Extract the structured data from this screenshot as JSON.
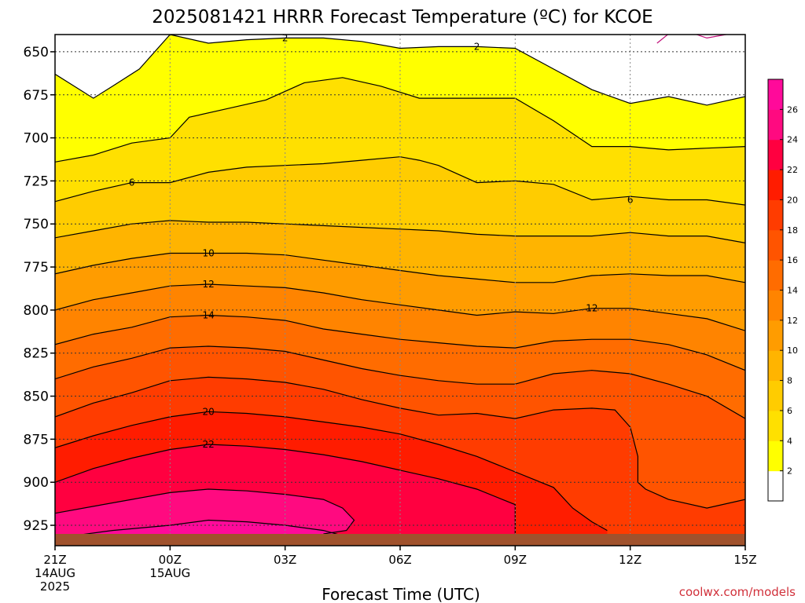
{
  "chart_data": {
    "type": "heatmap",
    "title": "2025081421 HRRR Forecast Temperature (ºC) for KCOE",
    "xlabel": "Forecast Time (UTC)",
    "ylabel": "",
    "y_scale": "pressure",
    "ylim": [
      640,
      935
    ],
    "y_ticks": [
      650,
      675,
      700,
      725,
      750,
      775,
      800,
      825,
      850,
      875,
      900,
      925
    ],
    "x_ticks": [
      {
        "hour": 0,
        "label": "21Z",
        "sub1": "14AUG",
        "sub2": "2025"
      },
      {
        "hour": 3,
        "label": "00Z",
        "sub1": "15AUG",
        "sub2": ""
      },
      {
        "hour": 6,
        "label": "03Z",
        "sub1": "",
        "sub2": ""
      },
      {
        "hour": 9,
        "label": "06Z",
        "sub1": "",
        "sub2": ""
      },
      {
        "hour": 12,
        "label": "09Z",
        "sub1": "",
        "sub2": ""
      },
      {
        "hour": 15,
        "label": "12Z",
        "sub1": "",
        "sub2": ""
      },
      {
        "hour": 18,
        "label": "15Z",
        "sub1": "",
        "sub2": ""
      }
    ],
    "grid": true,
    "colorbar": {
      "placement": "right",
      "levels": [
        2,
        4,
        6,
        8,
        10,
        12,
        14,
        16,
        18,
        20,
        22,
        24,
        26,
        28
      ],
      "labels": [
        "2",
        "4",
        "6",
        "8",
        "10",
        "12",
        "14",
        "16",
        "18",
        "20",
        "22",
        "24",
        "26"
      ],
      "colors": [
        "#ffff00",
        "#ffe000",
        "#ffcc00",
        "#ffb400",
        "#ff9c00",
        "#ff8400",
        "#ff6c00",
        "#ff5400",
        "#ff3c00",
        "#ff1c00",
        "#ff0040",
        "#ff0a80",
        "#ff0a9a"
      ],
      "below_color": "#ffffff"
    },
    "ground_color": "#a0522d",
    "contours": [
      {
        "value": 0,
        "points": [
          [
            15.7,
            645
          ],
          [
            16.2,
            636
          ],
          [
            17.0,
            642
          ],
          [
            18.0,
            638
          ],
          [
            18.3,
            632
          ]
        ],
        "fill": null,
        "line": "#c0107a"
      },
      {
        "value": 2,
        "points": [
          [
            0,
            663
          ],
          [
            1.0,
            677
          ],
          [
            1.5,
            670
          ],
          [
            2.2,
            660
          ],
          [
            3.0,
            640
          ],
          [
            4.0,
            645
          ],
          [
            5.0,
            643
          ],
          [
            6.0,
            642
          ],
          [
            7.0,
            642
          ],
          [
            8.0,
            644
          ],
          [
            9.0,
            648
          ],
          [
            10.0,
            647
          ],
          [
            11.0,
            647
          ],
          [
            12.0,
            648
          ],
          [
            13.0,
            660
          ],
          [
            14.0,
            672
          ],
          [
            15.0,
            680
          ],
          [
            16.0,
            676
          ],
          [
            17.0,
            681
          ],
          [
            18.0,
            676
          ]
        ],
        "fill": "#ffff00",
        "line": "#000000",
        "labels": [
          {
            "x": 6.0,
            "y": 642,
            "text": "2"
          },
          {
            "x": 11.0,
            "y": 647,
            "text": "2"
          }
        ]
      },
      {
        "value": 4,
        "points": [
          [
            0,
            714
          ],
          [
            1.0,
            710
          ],
          [
            2.0,
            703
          ],
          [
            3.0,
            700
          ],
          [
            3.5,
            688
          ],
          [
            4.5,
            683
          ],
          [
            5.5,
            678
          ],
          [
            6.5,
            668
          ],
          [
            7.5,
            665
          ],
          [
            8.5,
            670
          ],
          [
            9.5,
            677
          ],
          [
            10.5,
            677
          ],
          [
            11.5,
            677
          ],
          [
            12.0,
            677
          ],
          [
            13.0,
            690
          ],
          [
            14.0,
            705
          ],
          [
            15.0,
            705
          ],
          [
            16.0,
            707
          ],
          [
            17.0,
            706
          ],
          [
            18.0,
            705
          ]
        ],
        "fill": "#ffe000",
        "line": "#000000"
      },
      {
        "value": 6,
        "points": [
          [
            0,
            737
          ],
          [
            1.0,
            731
          ],
          [
            2.0,
            726
          ],
          [
            3.0,
            726
          ],
          [
            4.0,
            720
          ],
          [
            5.0,
            717
          ],
          [
            6.0,
            716
          ],
          [
            7.0,
            715
          ],
          [
            8.0,
            713
          ],
          [
            9.0,
            711
          ],
          [
            9.5,
            713
          ],
          [
            10.0,
            716
          ],
          [
            11.0,
            726
          ],
          [
            12.0,
            725
          ],
          [
            13.0,
            727
          ],
          [
            14.0,
            736
          ],
          [
            15.0,
            734
          ],
          [
            16.0,
            736
          ],
          [
            17.0,
            736
          ],
          [
            18.0,
            739
          ]
        ],
        "fill": "#ffcc00",
        "line": "#000000",
        "labels": [
          {
            "x": 2.0,
            "y": 726,
            "text": "6"
          },
          {
            "x": 15.0,
            "y": 736,
            "text": "6"
          }
        ]
      },
      {
        "value": 8,
        "points": [
          [
            0,
            758
          ],
          [
            1.0,
            754
          ],
          [
            2.0,
            750
          ],
          [
            3.0,
            748
          ],
          [
            4.0,
            749
          ],
          [
            5.0,
            749
          ],
          [
            6.0,
            750
          ],
          [
            7.0,
            751
          ],
          [
            8.0,
            752
          ],
          [
            9.0,
            753
          ],
          [
            10.0,
            754
          ],
          [
            11.0,
            756
          ],
          [
            12.0,
            757
          ],
          [
            13.0,
            757
          ],
          [
            14.0,
            757
          ],
          [
            15.0,
            755
          ],
          [
            16.0,
            757
          ],
          [
            17.0,
            757
          ],
          [
            18.0,
            761
          ]
        ],
        "fill": "#ffb400",
        "line": "#000000"
      },
      {
        "value": 10,
        "points": [
          [
            0,
            779
          ],
          [
            1.0,
            774
          ],
          [
            2.0,
            770
          ],
          [
            3.0,
            767
          ],
          [
            4.0,
            767
          ],
          [
            5.0,
            767
          ],
          [
            6.0,
            768
          ],
          [
            7.0,
            771
          ],
          [
            8.0,
            774
          ],
          [
            9.0,
            777
          ],
          [
            10.0,
            780
          ],
          [
            11.0,
            782
          ],
          [
            12.0,
            784
          ],
          [
            13.0,
            784
          ],
          [
            14.0,
            780
          ],
          [
            15.0,
            779
          ],
          [
            16.0,
            780
          ],
          [
            17.0,
            780
          ],
          [
            18.0,
            784
          ]
        ],
        "fill": "#ff9c00",
        "line": "#000000",
        "labels": [
          {
            "x": 4.0,
            "y": 767,
            "text": "10"
          }
        ]
      },
      {
        "value": 12,
        "points": [
          [
            0,
            800
          ],
          [
            1.0,
            794
          ],
          [
            2.0,
            790
          ],
          [
            3.0,
            786
          ],
          [
            4.0,
            785
          ],
          [
            5.0,
            786
          ],
          [
            6.0,
            787
          ],
          [
            7.0,
            790
          ],
          [
            8.0,
            794
          ],
          [
            9.0,
            797
          ],
          [
            10.0,
            800
          ],
          [
            11.0,
            803
          ],
          [
            12.0,
            801
          ],
          [
            13.0,
            802
          ],
          [
            14.0,
            799
          ],
          [
            15.0,
            799
          ],
          [
            16.0,
            802
          ],
          [
            17.0,
            805
          ],
          [
            18.0,
            812
          ]
        ],
        "fill": "#ff8400",
        "line": "#000000",
        "labels": [
          {
            "x": 4.0,
            "y": 785,
            "text": "12"
          },
          {
            "x": 14.0,
            "y": 799,
            "text": "12"
          }
        ]
      },
      {
        "value": 14,
        "points": [
          [
            0,
            820
          ],
          [
            1.0,
            814
          ],
          [
            2.0,
            810
          ],
          [
            3.0,
            804
          ],
          [
            4.0,
            803
          ],
          [
            5.0,
            804
          ],
          [
            6.0,
            806
          ],
          [
            7.0,
            811
          ],
          [
            8.0,
            814
          ],
          [
            9.0,
            817
          ],
          [
            10.0,
            819
          ],
          [
            11.0,
            821
          ],
          [
            12.0,
            822
          ],
          [
            13.0,
            818
          ],
          [
            14.0,
            817
          ],
          [
            15.0,
            817
          ],
          [
            16.0,
            820
          ],
          [
            17.0,
            826
          ],
          [
            18.0,
            835
          ]
        ],
        "fill": "#ff6c00",
        "line": "#000000",
        "labels": [
          {
            "x": 4.0,
            "y": 803,
            "text": "14"
          }
        ]
      },
      {
        "value": 16,
        "points": [
          [
            0,
            840
          ],
          [
            1.0,
            833
          ],
          [
            2.0,
            828
          ],
          [
            3.0,
            822
          ],
          [
            4.0,
            821
          ],
          [
            5.0,
            822
          ],
          [
            6.0,
            824
          ],
          [
            7.0,
            829
          ],
          [
            8.0,
            834
          ],
          [
            9.0,
            838
          ],
          [
            10.0,
            841
          ],
          [
            11.0,
            843
          ],
          [
            12.0,
            843
          ],
          [
            13.0,
            837
          ],
          [
            14.0,
            835
          ],
          [
            15.0,
            837
          ],
          [
            16.0,
            843
          ],
          [
            17.0,
            850
          ],
          [
            18.0,
            863
          ]
        ],
        "fill": "#ff5400",
        "line": "#000000"
      },
      {
        "value": 18,
        "points": [
          [
            0,
            862
          ],
          [
            1.0,
            854
          ],
          [
            2.0,
            848
          ],
          [
            3.0,
            841
          ],
          [
            4.0,
            839
          ],
          [
            5.0,
            840
          ],
          [
            6.0,
            842
          ],
          [
            7.0,
            846
          ],
          [
            8.0,
            852
          ],
          [
            9.0,
            857
          ],
          [
            10.0,
            861
          ],
          [
            11.0,
            860
          ],
          [
            12.0,
            863
          ],
          [
            13.0,
            858
          ],
          [
            14.0,
            857
          ],
          [
            14.6,
            858
          ],
          [
            15.0,
            868
          ],
          [
            15.2,
            885
          ],
          [
            15.2,
            900
          ],
          [
            15.4,
            904
          ],
          [
            16.0,
            910
          ],
          [
            17.0,
            915
          ],
          [
            18.0,
            910
          ]
        ],
        "fill": "#ff3c00",
        "line": "#000000"
      },
      {
        "value": 20,
        "points": [
          [
            0,
            880
          ],
          [
            1.0,
            873
          ],
          [
            2.0,
            867
          ],
          [
            3.0,
            862
          ],
          [
            4.0,
            859
          ],
          [
            5.0,
            860
          ],
          [
            6.0,
            862
          ],
          [
            7.0,
            865
          ],
          [
            8.0,
            868
          ],
          [
            9.0,
            872
          ],
          [
            10.0,
            878
          ],
          [
            11.0,
            885
          ],
          [
            12.0,
            894
          ],
          [
            13.0,
            903
          ],
          [
            13.5,
            915
          ],
          [
            14.0,
            923
          ],
          [
            14.4,
            928
          ]
        ],
        "fill": "#ff1c00",
        "line": "#000000",
        "labels": [
          {
            "x": 4.0,
            "y": 859,
            "text": "20"
          }
        ]
      },
      {
        "value": 22,
        "points": [
          [
            0,
            900
          ],
          [
            1.0,
            892
          ],
          [
            2.0,
            886
          ],
          [
            3.0,
            881
          ],
          [
            4.0,
            878
          ],
          [
            5.0,
            879
          ],
          [
            6.0,
            881
          ],
          [
            7.0,
            884
          ],
          [
            8.0,
            888
          ],
          [
            9.0,
            893
          ],
          [
            10.0,
            898
          ],
          [
            11.0,
            904
          ],
          [
            12.0,
            913
          ],
          [
            12.0,
            925
          ],
          [
            12.0,
            930
          ]
        ],
        "fill": "#ff0040",
        "line": "#000000",
        "labels": [
          {
            "x": 4.0,
            "y": 878,
            "text": "22"
          }
        ]
      },
      {
        "value": 24,
        "points": [
          [
            0,
            918
          ],
          [
            1.0,
            914
          ],
          [
            2.0,
            910
          ],
          [
            3.0,
            906
          ],
          [
            4.0,
            904
          ],
          [
            5.0,
            905
          ],
          [
            6.0,
            907
          ],
          [
            7.0,
            910
          ],
          [
            7.5,
            915
          ],
          [
            7.8,
            922
          ],
          [
            7.6,
            928
          ],
          [
            7.0,
            930
          ]
        ],
        "fill": "#ff0a80",
        "line": "#000000"
      },
      {
        "value": 26,
        "points": [
          [
            0.5,
            931
          ],
          [
            1.5,
            928
          ],
          [
            3.0,
            925
          ],
          [
            4.0,
            922
          ],
          [
            5.0,
            923
          ],
          [
            6.0,
            925
          ],
          [
            7.0,
            928
          ],
          [
            7.5,
            931
          ]
        ],
        "fill": "#ff0a9a",
        "line": "#000000"
      }
    ]
  },
  "credit": "coolwx.com/models"
}
